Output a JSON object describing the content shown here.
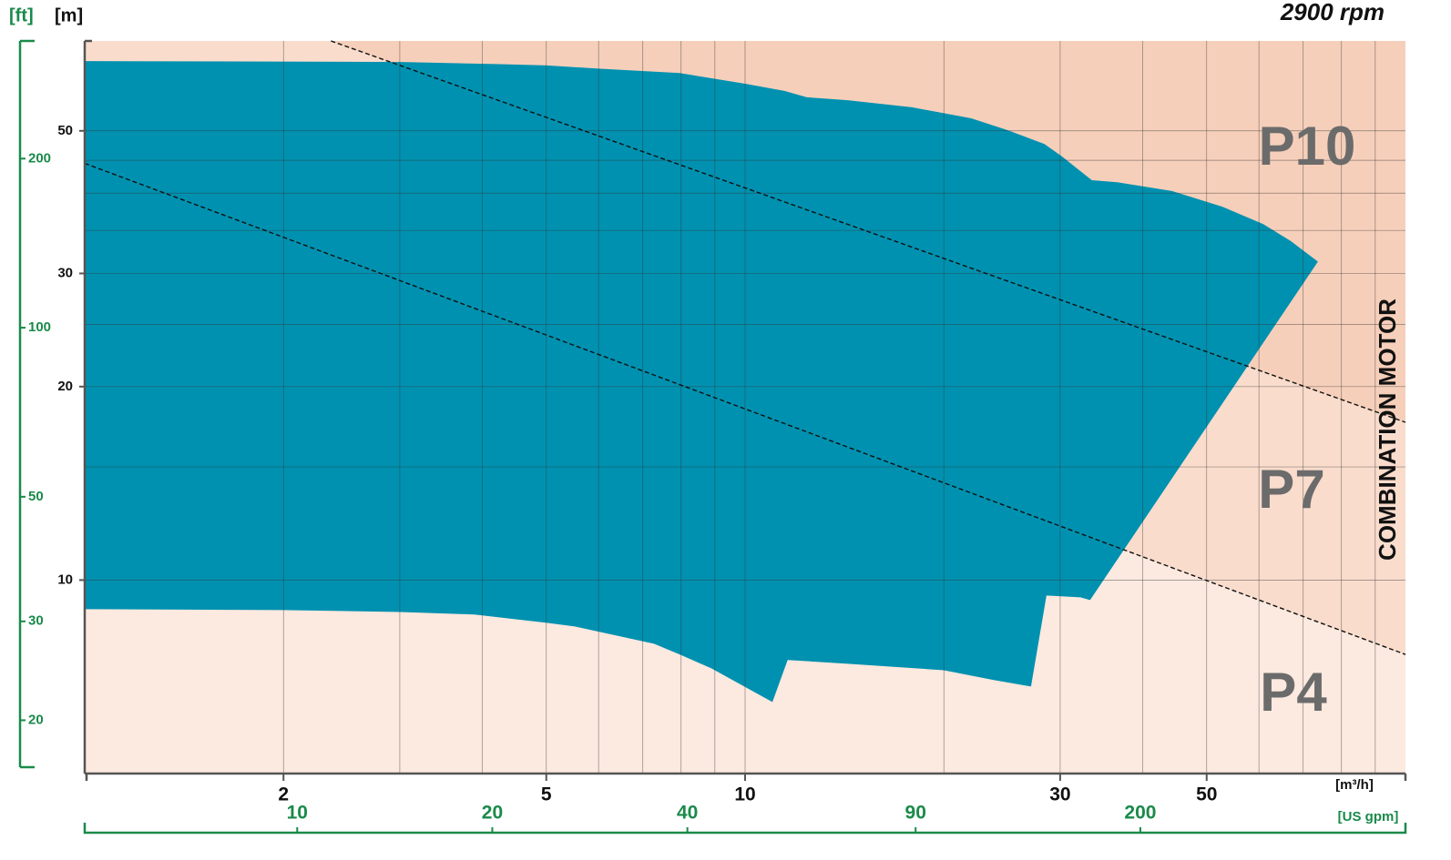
{
  "chart_data": {
    "type": "area",
    "title": "2900 rpm",
    "y_unit": "[m]",
    "y2_unit": "[ft]",
    "x_unit": "[m³/h]",
    "x2_unit": "[US gpm]",
    "side_label": "COMBINATION MOTOR",
    "log_x": true,
    "log_y": true,
    "xlim": [
      1,
      100
    ],
    "xticks": [
      2,
      5,
      10,
      30,
      50
    ],
    "xgrid": [
      2,
      3,
      4,
      5,
      6,
      7,
      8,
      9,
      10,
      20,
      30,
      40,
      50,
      60,
      70,
      80,
      90
    ],
    "ylim": [
      5,
      69
    ],
    "yticks": [
      10,
      20,
      30,
      50
    ],
    "ygrid": [
      10,
      15,
      20,
      25,
      30,
      35,
      40,
      45,
      50
    ],
    "y2lim": [
      16.5,
      324
    ],
    "y2ticks": [
      20,
      30,
      50,
      100,
      200
    ],
    "x2lim": [
      4.7,
      513
    ],
    "x2ticks": [
      10,
      20,
      40,
      90,
      200
    ],
    "regions": [
      {
        "name": "P4",
        "color": "#fce9df"
      },
      {
        "name": "P7",
        "color": "#f9dccc"
      },
      {
        "name": "P10",
        "color": "#f6cfba"
      }
    ],
    "dividers": [
      {
        "x": [
          1,
          100
        ],
        "y": [
          44.5,
          7.66
        ]
      },
      {
        "x": [
          2.36,
          100
        ],
        "y": [
          69,
          17.6
        ]
      }
    ],
    "operating_range": {
      "color": "#0091b0",
      "x": [
        1,
        3.01,
        4.26,
        5.01,
        5.99,
        7.96,
        10,
        11.47,
        12.4,
        14.3,
        17.9,
        22.0,
        25.0,
        28.4,
        30.2,
        33.5,
        36.6,
        44.3,
        52.8,
        60.9,
        67.0,
        73.7,
        33.3,
        32.2,
        28.6,
        27.1,
        23.8,
        20.0,
        14.3,
        11.6,
        11.0,
        8.89,
        7.96,
        7.28,
        5.52,
        5.01,
        3.89,
        3.01,
        2.0,
        1
      ],
      "y": [
        64.2,
        64.0,
        63.5,
        63.2,
        62.5,
        61.5,
        59.2,
        57.7,
        56.4,
        55.8,
        54.4,
        52.3,
        50.1,
        47.7,
        45.6,
        41.9,
        41.6,
        40.3,
        38.1,
        35.8,
        33.7,
        31.3,
        9.31,
        9.4,
        9.46,
        6.83,
        6.99,
        7.24,
        7.41,
        7.51,
        6.46,
        7.29,
        7.66,
        7.96,
        8.47,
        8.58,
        8.84,
        8.92,
        8.98,
        9.01
      ]
    }
  }
}
